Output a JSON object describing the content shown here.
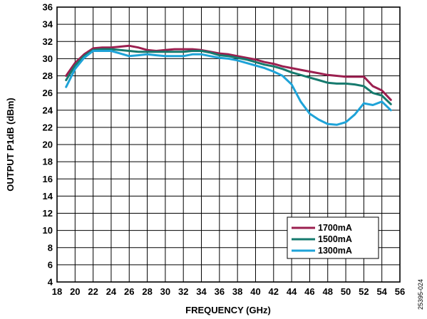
{
  "figure_id": "25395-024",
  "chart_data": {
    "type": "line",
    "title": "",
    "xlabel": "FREQUENCY (GHz)",
    "ylabel": "OUTPUT P1dB (dBm)",
    "xlim": [
      18,
      56
    ],
    "ylim": [
      4,
      36
    ],
    "xticks": [
      18,
      20,
      22,
      24,
      26,
      28,
      30,
      32,
      34,
      36,
      38,
      40,
      42,
      44,
      46,
      48,
      50,
      52,
      54,
      56
    ],
    "yticks": [
      4,
      6,
      8,
      10,
      12,
      14,
      16,
      18,
      20,
      22,
      24,
      26,
      28,
      30,
      32,
      34,
      36
    ],
    "grid": true,
    "legend_position": "bottom-right",
    "series": [
      {
        "name": "1700mA",
        "color": "#9b1f4f",
        "x": [
          19,
          20,
          21,
          22,
          23,
          24,
          25,
          26,
          27,
          28,
          29,
          30,
          31,
          32,
          33,
          34,
          35,
          36,
          37,
          38,
          39,
          40,
          41,
          42,
          43,
          44,
          45,
          46,
          47,
          48,
          49,
          50,
          51,
          52,
          53,
          54,
          55
        ],
        "y": [
          28.0,
          29.5,
          30.5,
          31.2,
          31.3,
          31.3,
          31.4,
          31.5,
          31.3,
          31.0,
          30.9,
          31.0,
          31.1,
          31.1,
          31.1,
          31.0,
          30.8,
          30.6,
          30.5,
          30.3,
          30.1,
          29.9,
          29.6,
          29.4,
          29.1,
          28.9,
          28.7,
          28.5,
          28.3,
          28.1,
          28.0,
          27.9,
          27.9,
          27.9,
          26.8,
          26.3,
          25.2
        ]
      },
      {
        "name": "1500mA",
        "color": "#167a6e",
        "x": [
          19,
          20,
          21,
          22,
          23,
          24,
          25,
          26,
          27,
          28,
          29,
          30,
          31,
          32,
          33,
          34,
          35,
          36,
          37,
          38,
          39,
          40,
          41,
          42,
          43,
          44,
          45,
          46,
          47,
          48,
          49,
          50,
          51,
          52,
          53,
          54,
          55
        ],
        "y": [
          27.5,
          29.2,
          30.3,
          31.0,
          31.1,
          31.1,
          31.0,
          30.9,
          30.8,
          30.8,
          30.8,
          30.8,
          30.8,
          30.8,
          30.9,
          30.9,
          30.7,
          30.4,
          30.3,
          30.1,
          29.9,
          29.6,
          29.3,
          29.1,
          28.8,
          28.4,
          28.1,
          27.8,
          27.5,
          27.2,
          27.1,
          27.1,
          27.0,
          26.8,
          26.0,
          25.7,
          24.7
        ]
      },
      {
        "name": "1300mA",
        "color": "#1ea3d8",
        "x": [
          19,
          20,
          21,
          22,
          23,
          24,
          25,
          26,
          27,
          28,
          29,
          30,
          31,
          32,
          33,
          34,
          35,
          36,
          37,
          38,
          39,
          40,
          41,
          42,
          43,
          44,
          45,
          46,
          47,
          48,
          49,
          50,
          51,
          52,
          53,
          54,
          55
        ],
        "y": [
          26.7,
          28.8,
          30.1,
          30.9,
          30.9,
          30.9,
          30.6,
          30.3,
          30.4,
          30.5,
          30.4,
          30.3,
          30.3,
          30.3,
          30.5,
          30.5,
          30.3,
          30.1,
          30.0,
          29.8,
          29.5,
          29.2,
          28.9,
          28.5,
          28.0,
          27.0,
          25.0,
          23.6,
          22.9,
          22.4,
          22.3,
          22.6,
          23.5,
          24.8,
          24.6,
          25.0,
          24.0
        ]
      }
    ]
  }
}
